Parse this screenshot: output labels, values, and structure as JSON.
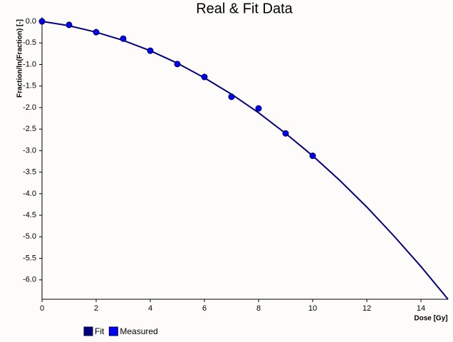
{
  "chart_data": {
    "type": "line",
    "title": "Real & Fit Data",
    "x_label": "Dose [Gy]",
    "y_label": "Fraction/ln(Fraction) [-]",
    "xlim": [
      0,
      15
    ],
    "ylim": [
      -6.45,
      0.1
    ],
    "xticks": [
      0,
      2,
      4,
      6,
      8,
      10,
      12,
      14
    ],
    "yticks": [
      {
        "value": 0,
        "label": "0.0"
      },
      {
        "value": -0.5,
        "label": "-0.5"
      },
      {
        "value": -1,
        "label": "-1.0"
      },
      {
        "value": -1.5,
        "label": "-1.5"
      },
      {
        "value": -2,
        "label": "-2.0"
      },
      {
        "value": -2.5,
        "label": "-2.5"
      },
      {
        "value": -3,
        "label": "-3.0"
      },
      {
        "value": -3.5,
        "label": "-3.5"
      },
      {
        "value": -4,
        "label": "-4.0"
      },
      {
        "value": -4.5,
        "label": "-4.5"
      },
      {
        "value": -5,
        "label": "-5.0"
      },
      {
        "value": -5.5,
        "label": "-5.5"
      },
      {
        "value": -6,
        "label": "-6.0"
      }
    ],
    "series": [
      {
        "name": "Fit",
        "color": "#000080",
        "style": "line",
        "x": [
          0,
          1,
          2,
          3,
          4,
          5,
          6,
          7,
          8,
          9,
          10,
          11,
          12,
          13,
          14,
          15
        ],
        "values": [
          0,
          -0.1,
          -0.25,
          -0.44,
          -0.68,
          -0.97,
          -1.31,
          -1.69,
          -2.12,
          -2.6,
          -3.12,
          -3.69,
          -4.31,
          -4.98,
          -5.69,
          -6.45
        ]
      },
      {
        "name": "Measured",
        "color": "#0000ff",
        "style": "marker",
        "x": [
          0,
          1,
          2,
          3,
          4,
          5,
          6,
          7,
          8,
          9,
          10
        ],
        "values": [
          0,
          -0.08,
          -0.25,
          -0.4,
          -0.68,
          -0.99,
          -1.29,
          -1.75,
          -2.02,
          -2.6,
          -3.12
        ]
      }
    ]
  }
}
